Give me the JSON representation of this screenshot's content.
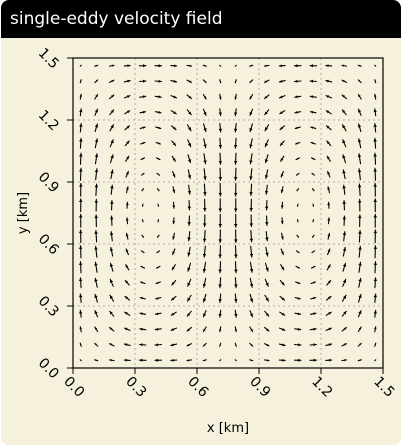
{
  "header": {
    "title": "single-eddy velocity field"
  },
  "chart_data": {
    "type": "quiver",
    "title": "",
    "xlabel": "x [km]",
    "ylabel": "y [km]",
    "xlim": [
      0.0,
      1.5
    ],
    "ylim": [
      0.0,
      1.5
    ],
    "xticks": [
      "0.0",
      "0.3",
      "0.6",
      "0.9",
      "1.2",
      "1.5"
    ],
    "yticks": [
      "0.0",
      "0.3",
      "0.6",
      "0.9",
      "1.2",
      "1.5"
    ],
    "grid": true,
    "grid_points": 20,
    "grid_range": [
      0.0,
      1.5
    ],
    "colors": {
      "background": "#f6f1dc",
      "title_bar": "#000000",
      "title_text": "#ffffff",
      "arrows": "#000000",
      "grid": "#9a9a9a"
    }
  }
}
